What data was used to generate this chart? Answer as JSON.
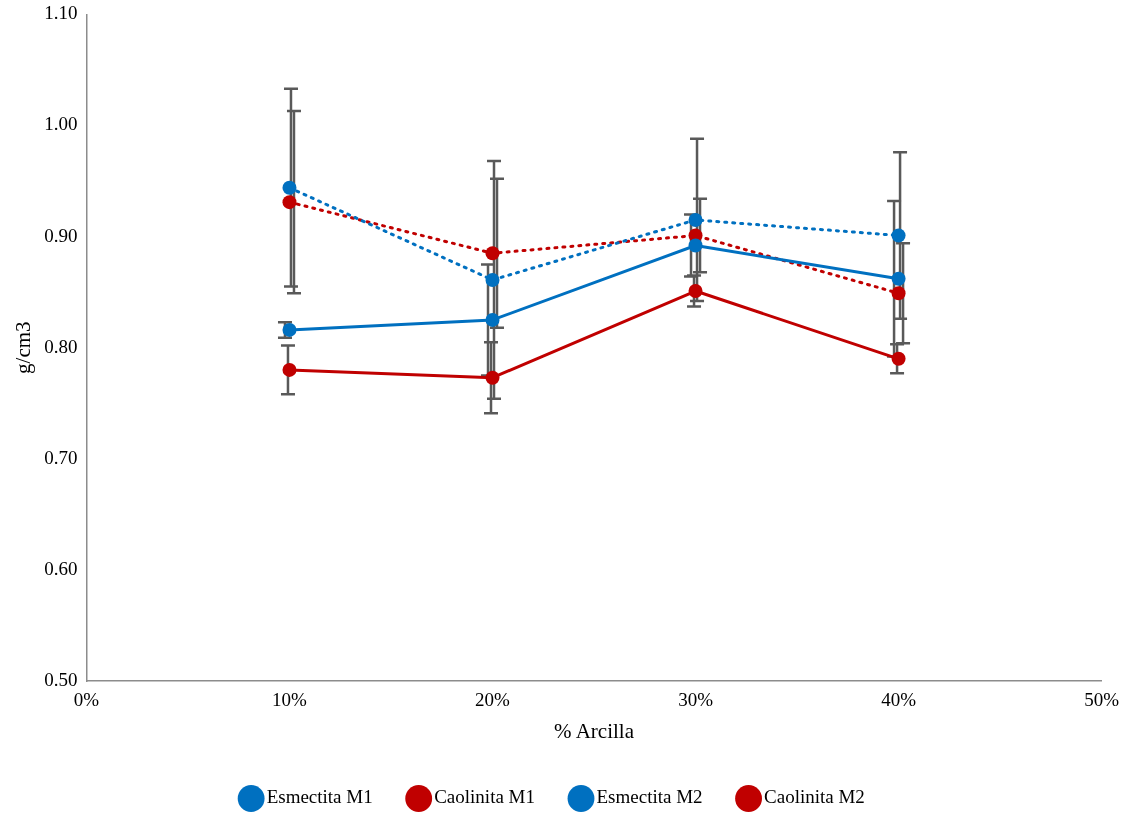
{
  "chart_data": {
    "type": "line",
    "xlabel": "% Arcilla",
    "ylabel": "g/cm3",
    "x": [
      10,
      20,
      30,
      40
    ],
    "xlim": [
      0,
      50
    ],
    "xticks": [
      {
        "value": 0,
        "label": "0%"
      },
      {
        "value": 10,
        "label": "10%"
      },
      {
        "value": 20,
        "label": "20%"
      },
      {
        "value": 30,
        "label": "30%"
      },
      {
        "value": 40,
        "label": "40%"
      },
      {
        "value": 50,
        "label": "50%"
      }
    ],
    "ylim": [
      0.5,
      1.1
    ],
    "yticks": [
      {
        "value": 0.5,
        "label": "0.50"
      },
      {
        "value": 0.6,
        "label": "0.60"
      },
      {
        "value": 0.7,
        "label": "0.70"
      },
      {
        "value": 0.8,
        "label": "0.80"
      },
      {
        "value": 0.9,
        "label": "0.90"
      },
      {
        "value": 1.0,
        "label": "1.00"
      },
      {
        "value": 1.1,
        "label": "1.10"
      }
    ],
    "grid": false,
    "legend": "bottom",
    "marker": "circle",
    "series": [
      {
        "name": "Esmectita M1",
        "color": "#0070c0",
        "line_style": "solid",
        "values": [
          0.816,
          0.825,
          0.892,
          0.862
        ],
        "errors": [
          0.007,
          0.05,
          0.028,
          0.07
        ]
      },
      {
        "name": "Caolinita M1",
        "color": "#c00000",
        "line_style": "solid",
        "values": [
          0.78,
          0.773,
          0.851,
          0.79
        ],
        "errors": [
          0.022,
          0.032,
          0.014,
          0.013
        ]
      },
      {
        "name": "Esmectita M2",
        "color": "#0070c0",
        "line_style": "dotted",
        "values": [
          0.944,
          0.861,
          0.915,
          0.901
        ],
        "errors": [
          0.089,
          0.107,
          0.073,
          0.075
        ]
      },
      {
        "name": "Caolinita M2",
        "color": "#c00000",
        "line_style": "dotted",
        "values": [
          0.931,
          0.885,
          0.901,
          0.849
        ],
        "errors": [
          0.082,
          0.067,
          0.033,
          0.045
        ]
      }
    ]
  }
}
